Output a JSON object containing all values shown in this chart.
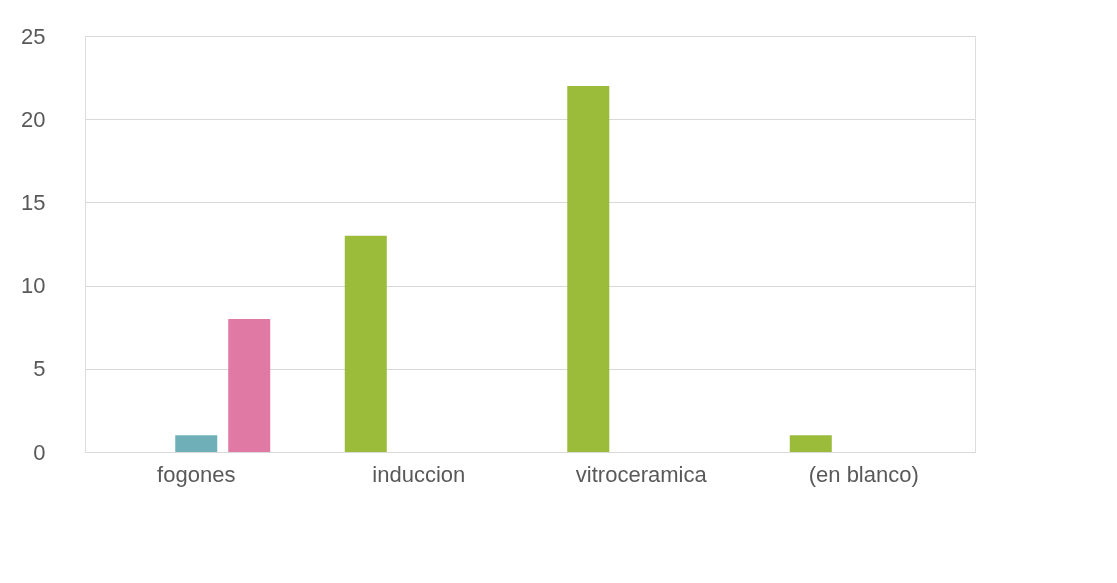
{
  "chart_data": {
    "type": "bar",
    "categories": [
      "fogones",
      "induccion",
      "vitroceramica",
      "(en blanco)"
    ],
    "series": [
      {
        "color": "#9bbb3b",
        "values": [
          null,
          13,
          22,
          1
        ]
      },
      {
        "color": "#6fb0b8",
        "values": [
          1,
          null,
          null,
          null
        ]
      },
      {
        "color": "#e07aa5",
        "values": [
          8,
          null,
          null,
          null
        ]
      }
    ],
    "ylim": [
      0,
      25
    ],
    "yticks": [
      0,
      5,
      10,
      15,
      20,
      25
    ],
    "grid": "y",
    "legend": false
  }
}
